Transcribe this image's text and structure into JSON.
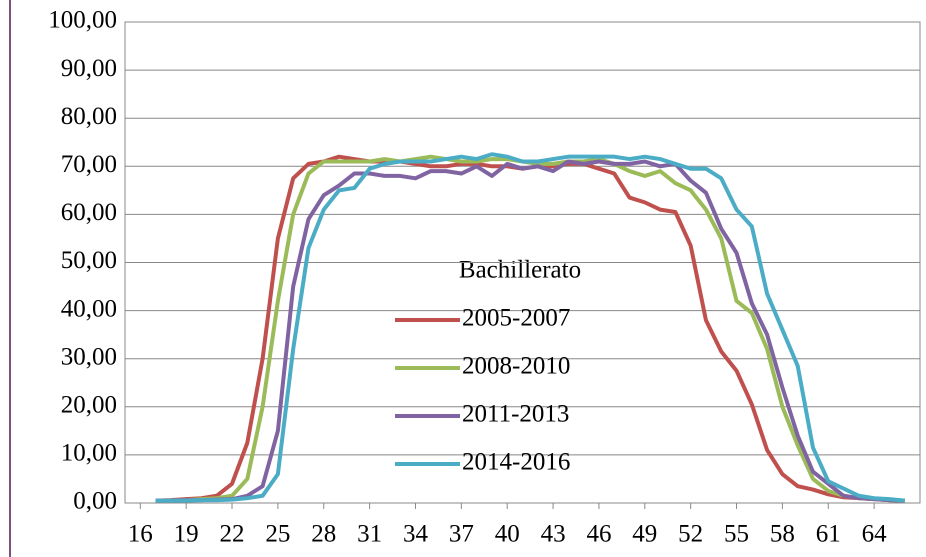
{
  "chart_data": {
    "type": "line",
    "legend_title": "Bachillerato",
    "x": [
      17,
      18,
      19,
      20,
      21,
      22,
      23,
      24,
      25,
      26,
      27,
      28,
      29,
      30,
      31,
      32,
      33,
      34,
      35,
      36,
      37,
      38,
      39,
      40,
      41,
      42,
      43,
      44,
      45,
      46,
      47,
      48,
      49,
      50,
      51,
      52,
      53,
      54,
      55,
      56,
      57,
      58,
      59,
      60,
      61,
      62,
      63,
      64,
      65,
      66
    ],
    "xlim": [
      15,
      67
    ],
    "xticks": [
      16,
      19,
      22,
      25,
      28,
      31,
      34,
      37,
      40,
      43,
      46,
      49,
      52,
      55,
      58,
      61,
      64
    ],
    "ylim": [
      0,
      100
    ],
    "yticks": [
      {
        "value": 0,
        "label": "0,00"
      },
      {
        "value": 10,
        "label": "10,00"
      },
      {
        "value": 20,
        "label": "20,00"
      },
      {
        "value": 30,
        "label": "30,00"
      },
      {
        "value": 40,
        "label": "40,00"
      },
      {
        "value": 50,
        "label": "50,00"
      },
      {
        "value": 60,
        "label": "60,00"
      },
      {
        "value": 70,
        "label": "70,00"
      },
      {
        "value": 80,
        "label": "80,00"
      },
      {
        "value": 90,
        "label": "90,00"
      },
      {
        "value": 100,
        "label": "100,00"
      }
    ],
    "grid": true,
    "series": [
      {
        "name": "2005-2007",
        "color": "#c0504d",
        "values": [
          0.5,
          0.6,
          0.8,
          1,
          1.5,
          4,
          12.5,
          30,
          55,
          67.5,
          70.5,
          71,
          72,
          71.5,
          71,
          71,
          71,
          70.5,
          70,
          70,
          70.5,
          70.5,
          70,
          70,
          69.5,
          70,
          70,
          70.5,
          70.5,
          69.5,
          68.5,
          63.5,
          62.5,
          61,
          60.5,
          53.5,
          38,
          31.5,
          27.5,
          20.5,
          11,
          6,
          3.5,
          2.8,
          1.8,
          1.2,
          1,
          0.8,
          0.6,
          0.5
        ]
      },
      {
        "name": "2008-2010",
        "color": "#9bbb59",
        "values": [
          0.5,
          0.5,
          0.6,
          0.8,
          1,
          1.5,
          5,
          20,
          42,
          60,
          68.5,
          71,
          71,
          71,
          71,
          71.5,
          71,
          71.5,
          72,
          71.5,
          71,
          71,
          71.5,
          71.5,
          71,
          70.5,
          70.5,
          71,
          71,
          71.5,
          70.5,
          69,
          68,
          69,
          66.5,
          65,
          61,
          55,
          42,
          39.5,
          32,
          20,
          12,
          5,
          2.5,
          1.5,
          1,
          0.8,
          0.6,
          0.5
        ]
      },
      {
        "name": "2011-2013",
        "color": "#8064a2",
        "values": [
          0.5,
          0.5,
          0.6,
          0.6,
          0.7,
          0.8,
          1.5,
          3.5,
          15,
          45,
          59,
          64,
          66,
          68.5,
          68.5,
          68,
          68,
          67.5,
          69,
          69,
          68.5,
          70,
          68,
          70.5,
          69.5,
          70,
          69,
          71,
          70.5,
          71,
          70.5,
          70.5,
          71,
          70,
          70.5,
          67,
          64.5,
          57,
          52,
          41.5,
          35,
          24,
          14,
          6.5,
          4,
          1.5,
          1,
          0.8,
          0.6,
          0.5
        ]
      },
      {
        "name": "2014-2016",
        "color": "#4bacc6",
        "values": [
          0.5,
          0.5,
          0.5,
          0.6,
          0.6,
          0.7,
          1,
          1.5,
          6,
          32,
          53,
          61,
          65,
          65.5,
          69.5,
          70.5,
          71,
          71,
          71,
          71.5,
          72,
          71.5,
          72.5,
          72,
          71,
          71,
          71.5,
          72,
          72,
          72,
          72,
          71.5,
          72,
          71.5,
          70.5,
          69.5,
          69.5,
          67.5,
          61,
          57.5,
          43.5,
          36,
          28.5,
          11.5,
          4.5,
          3,
          1.5,
          1,
          0.8,
          0.5
        ]
      }
    ]
  }
}
